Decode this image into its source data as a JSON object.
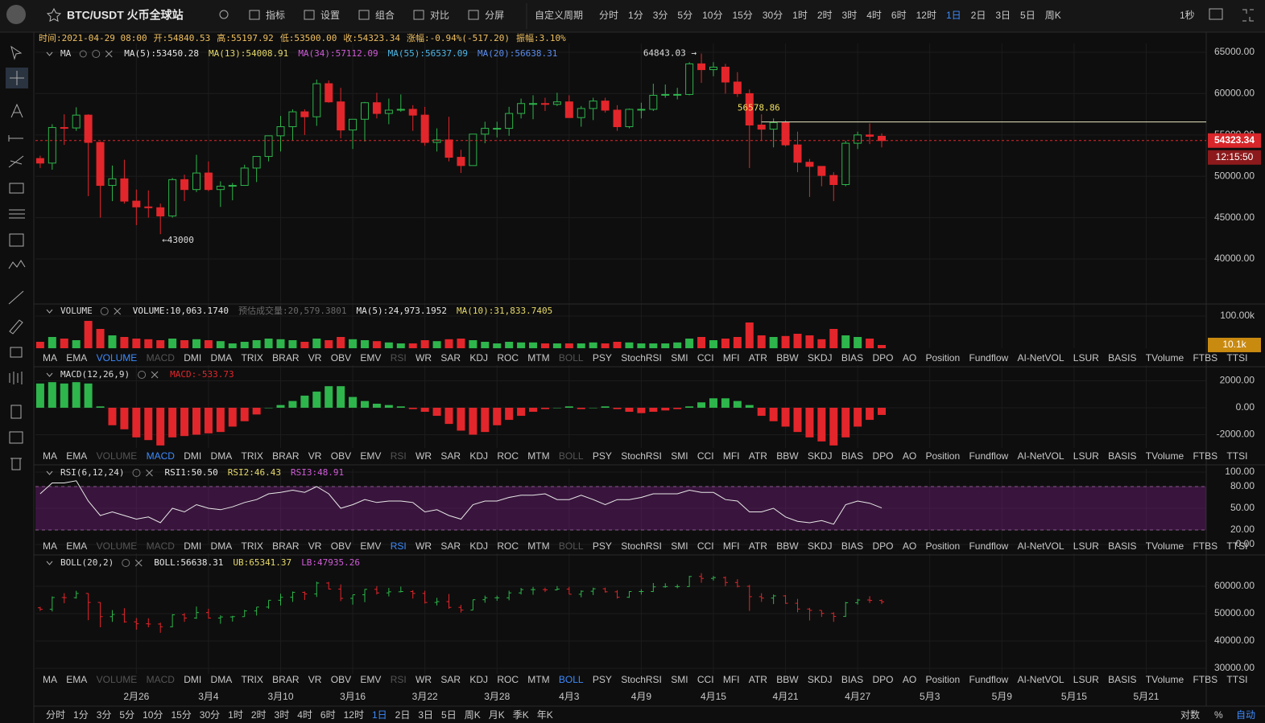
{
  "header": {
    "symbol": "BTC/USDT 火币全球站",
    "menu": [
      "指标",
      "设置",
      "组合",
      "对比",
      "分屏"
    ],
    "custom_period": "自定义周期",
    "periods": [
      {
        "label": "分时"
      },
      {
        "label": "1分"
      },
      {
        "label": "3分"
      },
      {
        "label": "5分"
      },
      {
        "label": "10分"
      },
      {
        "label": "15分"
      },
      {
        "label": "30分"
      },
      {
        "label": "1时"
      },
      {
        "label": "2时"
      },
      {
        "label": "3时"
      },
      {
        "label": "4时"
      },
      {
        "label": "6时"
      },
      {
        "label": "12时"
      },
      {
        "label": "1日",
        "active": true
      },
      {
        "label": "2日"
      },
      {
        "label": "3日"
      },
      {
        "label": "5日"
      },
      {
        "label": "周K"
      }
    ],
    "refresh": "1秒"
  },
  "info": [
    "时间:2021-04-29 08:00",
    "开:54840.53",
    "高:55197.92",
    "低:53500.00",
    "收:54323.34",
    "涨幅:-0.94%(-517.20)",
    "振幅:3.10%"
  ],
  "indicator_tabs": [
    "MA",
    "EMA",
    "VOLUME",
    "MACD",
    "DMI",
    "DMA",
    "TRIX",
    "BRAR",
    "VR",
    "OBV",
    "EMV",
    "RSI",
    "WR",
    "SAR",
    "KDJ",
    "ROC",
    "MTM",
    "BOLL",
    "PSY",
    "StochRSI",
    "SMI",
    "CCI",
    "MFI",
    "ATR",
    "BBW",
    "SKDJ",
    "BIAS",
    "DPO",
    "AO",
    "Position",
    "Fundflow",
    "AI-NetVOL",
    "LSUR",
    "BASIS",
    "TVolume",
    "FTBS",
    "TTSI"
  ],
  "added_tabs": [
    "VOLUME",
    "MACD",
    "RSI",
    "BOLL"
  ],
  "x_labels": [
    "2月26",
    "3月4",
    "3月10",
    "3月16",
    "3月22",
    "3月28",
    "4月3",
    "4月9",
    "4月15",
    "4月21",
    "4月27",
    "5月3",
    "5月9",
    "5月15",
    "5月21"
  ],
  "footer": {
    "periods": [
      "分时",
      "1分",
      "3分",
      "5分",
      "10分",
      "15分",
      "30分",
      "1时",
      "2时",
      "3时",
      "4时",
      "6时",
      "12时",
      {
        "label": "1日",
        "active": true
      },
      "2日",
      "3日",
      "5日",
      "周K",
      "月K",
      "季K",
      "年K"
    ],
    "right": [
      "对数",
      "%",
      "自动"
    ]
  },
  "chart_data": [
    {
      "type": "candlestick",
      "title": "MA",
      "colors": {
        "up": "#2eb54c",
        "down": "#e3262b"
      },
      "legend": [
        {
          "text": "MA(5):53450.28",
          "color": "#e8e8e8"
        },
        {
          "text": "MA(13):54008.91",
          "color": "#e6d96a"
        },
        {
          "text": "MA(34):57112.09",
          "color": "#d05bd8"
        },
        {
          "text": "MA(55):56537.09",
          "color": "#4fb6e6"
        },
        {
          "text": "MA(20):56638.31",
          "color": "#5b8def"
        }
      ],
      "open": [
        52150,
        51600,
        55900,
        55850,
        57400,
        54100,
        48900,
        49700,
        47000,
        46300,
        46200,
        45200,
        49600,
        48400,
        50400,
        48400,
        48800,
        48900,
        51000,
        52400,
        54900,
        56000,
        57800,
        57200,
        61200,
        59000,
        55600,
        56900,
        58900,
        57600,
        58000,
        58100,
        57400,
        54100,
        54400,
        52300,
        51300,
        55100,
        55800,
        55800,
        57600,
        58800,
        58800,
        58700,
        59000,
        57100,
        58200,
        59100,
        58000,
        56000,
        58100,
        58100,
        59800,
        59900,
        59900,
        63600,
        62900,
        63200,
        61400,
        60000,
        56200,
        55700,
        56500,
        53800,
        51700,
        51200,
        50100,
        49000,
        54000,
        55000,
        54840.53
      ],
      "high": [
        52500,
        56300,
        57500,
        58350,
        57500,
        54200,
        51300,
        52000,
        48400,
        48300,
        46700,
        49800,
        50200,
        52600,
        51800,
        49400,
        49200,
        51400,
        52400,
        54900,
        57300,
        58100,
        58100,
        61700,
        61600,
        60700,
        56900,
        59000,
        60100,
        59400,
        59900,
        58600,
        58400,
        55800,
        57200,
        53200,
        55100,
        56600,
        56600,
        58400,
        59400,
        59800,
        59500,
        60100,
        59800,
        58500,
        59500,
        59500,
        58600,
        58200,
        58900,
        61200,
        61100,
        60700,
        63800,
        64843.03,
        63800,
        63600,
        62600,
        60500,
        57500,
        57000,
        56800,
        55400,
        52100,
        51200,
        50500,
        54300,
        55400,
        56400,
        55197.92
      ],
      "low": [
        51000,
        50800,
        53800,
        55500,
        47600,
        45000,
        47000,
        46700,
        44100,
        45000,
        43000,
        45000,
        47000,
        48100,
        48200,
        46300,
        47100,
        48900,
        49300,
        51800,
        53000,
        54300,
        55000,
        56100,
        58900,
        54600,
        53300,
        54200,
        57000,
        56300,
        57800,
        55500,
        53700,
        53000,
        51800,
        50400,
        51300,
        54000,
        54700,
        54900,
        57000,
        56900,
        57900,
        58500,
        57100,
        56000,
        56800,
        57700,
        55500,
        55800,
        57000,
        57900,
        59500,
        59300,
        59800,
        61300,
        62100,
        60000,
        59600,
        51000,
        54300,
        53500,
        53600,
        50500,
        47500,
        48800,
        47000,
        48800,
        53300,
        53900,
        53500
      ],
      "close": [
        51600,
        55900,
        55850,
        57400,
        54100,
        48900,
        49700,
        47000,
        46300,
        46200,
        45200,
        49600,
        48400,
        50400,
        48400,
        48800,
        48900,
        51000,
        52400,
        54900,
        56000,
        57800,
        57200,
        61200,
        59000,
        55600,
        56900,
        58900,
        57600,
        58000,
        58100,
        57400,
        54100,
        54400,
        52300,
        51300,
        55100,
        55800,
        55800,
        57600,
        58800,
        58800,
        58700,
        59000,
        57100,
        58200,
        59100,
        58000,
        56000,
        58100,
        58100,
        59800,
        59900,
        59900,
        63600,
        62900,
        63200,
        61400,
        60000,
        56200,
        55700,
        56500,
        53800,
        51700,
        51200,
        50100,
        49000,
        54000,
        55000,
        54840.53,
        54323.34
      ],
      "ylim": [
        34850,
        65680
      ],
      "yticks": [
        {
          "value": 65000,
          "label": "65000.00"
        },
        {
          "value": 60000,
          "label": "60000.00"
        },
        {
          "value": 55000,
          "label": "55000.00"
        },
        {
          "value": 50000,
          "label": "50000.00"
        },
        {
          "value": 45000,
          "label": "45000.00"
        },
        {
          "value": 40000,
          "label": "40000.00"
        }
      ],
      "annotations": [
        {
          "value": 64843.03,
          "label": "64843.03 →"
        },
        {
          "value": 43000,
          "label": "←43000"
        }
      ],
      "level": {
        "value": 56578.86,
        "label": "56578.86"
      },
      "price_tag": {
        "value": 54323.34,
        "label": "54323.34",
        "time": "12:15:50"
      }
    },
    {
      "type": "bar",
      "title": "VOLUME",
      "legend": [
        {
          "text": "VOLUME:10,063.1740",
          "color": "#e8e8e8"
        },
        {
          "text": "预估成交量:20,579.3801",
          "color": "#6a6a6a"
        },
        {
          "text": "MA(5):24,973.1952",
          "color": "#e8e8e8"
        },
        {
          "text": "MA(10):31,833.7405",
          "color": "#e6d96a"
        }
      ],
      "values": [
        20000,
        35000,
        30000,
        25000,
        85000,
        60000,
        40000,
        35000,
        30000,
        28000,
        25000,
        30000,
        25000,
        28000,
        25000,
        22000,
        15000,
        20000,
        25000,
        30000,
        28000,
        25000,
        20000,
        30000,
        25000,
        35000,
        28000,
        25000,
        22000,
        18000,
        15000,
        15000,
        25000,
        22000,
        28000,
        30000,
        25000,
        20000,
        15000,
        20000,
        18000,
        18000,
        15000,
        15000,
        15000,
        15000,
        18000,
        15000,
        20000,
        18000,
        15000,
        15000,
        15000,
        18000,
        30000,
        35000,
        25000,
        30000,
        35000,
        80000,
        40000,
        35000,
        38000,
        45000,
        40000,
        28000,
        60000,
        40000,
        35000,
        30000,
        10063.174
      ],
      "ylim": [
        0,
        132500
      ],
      "yticks": [
        {
          "value": 100000,
          "label": "100.00k"
        }
      ],
      "tag": {
        "value": 10063.174,
        "label": "10.1k"
      },
      "active_tab": "VOLUME"
    },
    {
      "type": "bar",
      "title": "MACD(12,26,9)",
      "legend": [
        {
          "text": "MACD:-533.73",
          "color": "#e3262b"
        }
      ],
      "values": [
        1800,
        1900,
        1800,
        1900,
        1800,
        100,
        -1300,
        -1600,
        -2200,
        -2400,
        -2800,
        -2200,
        -2100,
        -2000,
        -1900,
        -1800,
        -1400,
        -1000,
        -500,
        0,
        200,
        500,
        900,
        1200,
        1600,
        1600,
        800,
        500,
        300,
        200,
        100,
        -100,
        -300,
        -600,
        -1200,
        -1700,
        -2000,
        -1800,
        -1300,
        -900,
        -600,
        -300,
        -100,
        0,
        100,
        -100,
        0,
        100,
        -100,
        -300,
        -400,
        -300,
        -200,
        -100,
        100,
        400,
        700,
        700,
        500,
        200,
        -600,
        -1000,
        -1400,
        -1800,
        -2200,
        -2500,
        -2800,
        -2200,
        -1400,
        -900,
        -533.73
      ],
      "ylim": [
        -2985,
        2925
      ],
      "yticks": [
        {
          "value": 2000,
          "label": "2000.00"
        },
        {
          "value": 0,
          "label": "0.00"
        },
        {
          "value": -2000,
          "label": "-2000.00"
        }
      ],
      "active_tab": "MACD"
    },
    {
      "type": "line",
      "title": "RSI(6,12,24)",
      "legend": [
        {
          "text": "RSI1:50.50",
          "color": "#e8e8e8"
        },
        {
          "text": "RSI2:46.43",
          "color": "#e6d96a"
        },
        {
          "text": "RSI3:48.91",
          "color": "#d05bd8"
        }
      ],
      "values": [
        70,
        85,
        85,
        88,
        60,
        40,
        45,
        40,
        35,
        38,
        30,
        50,
        45,
        55,
        50,
        48,
        52,
        58,
        62,
        70,
        72,
        75,
        72,
        80,
        70,
        50,
        55,
        62,
        58,
        60,
        60,
        58,
        45,
        48,
        40,
        35,
        55,
        60,
        60,
        65,
        68,
        68,
        70,
        62,
        62,
        68,
        62,
        55,
        62,
        62,
        65,
        70,
        70,
        70,
        75,
        72,
        72,
        62,
        60,
        45,
        45,
        50,
        38,
        32,
        30,
        33,
        28,
        55,
        60,
        57,
        50.5
      ],
      "band": [
        20,
        80
      ],
      "ylim": [
        0,
        100
      ],
      "yticks": [
        {
          "value": 100,
          "label": "100.00"
        },
        {
          "value": 80,
          "label": "80.00"
        },
        {
          "value": 50,
          "label": "50.00"
        },
        {
          "value": 20,
          "label": "20.00"
        },
        {
          "value": 0,
          "label": "0.00"
        }
      ],
      "active_tab": "RSI"
    },
    {
      "type": "ohlc",
      "title": "BOLL(20,2)",
      "legend": [
        {
          "text": "BOLL:56638.31",
          "color": "#e8e8e8"
        },
        {
          "text": "UB:65341.37",
          "color": "#e6d96a"
        },
        {
          "text": "LB:47935.26",
          "color": "#d05bd8"
        }
      ],
      "ylim": [
        27940,
        70900
      ],
      "yticks": [
        {
          "value": 60000,
          "label": "60000.00"
        },
        {
          "value": 50000,
          "label": "50000.00"
        },
        {
          "value": 40000,
          "label": "40000.00"
        },
        {
          "value": 30000,
          "label": "30000.00"
        }
      ],
      "active_tab": "BOLL"
    }
  ]
}
